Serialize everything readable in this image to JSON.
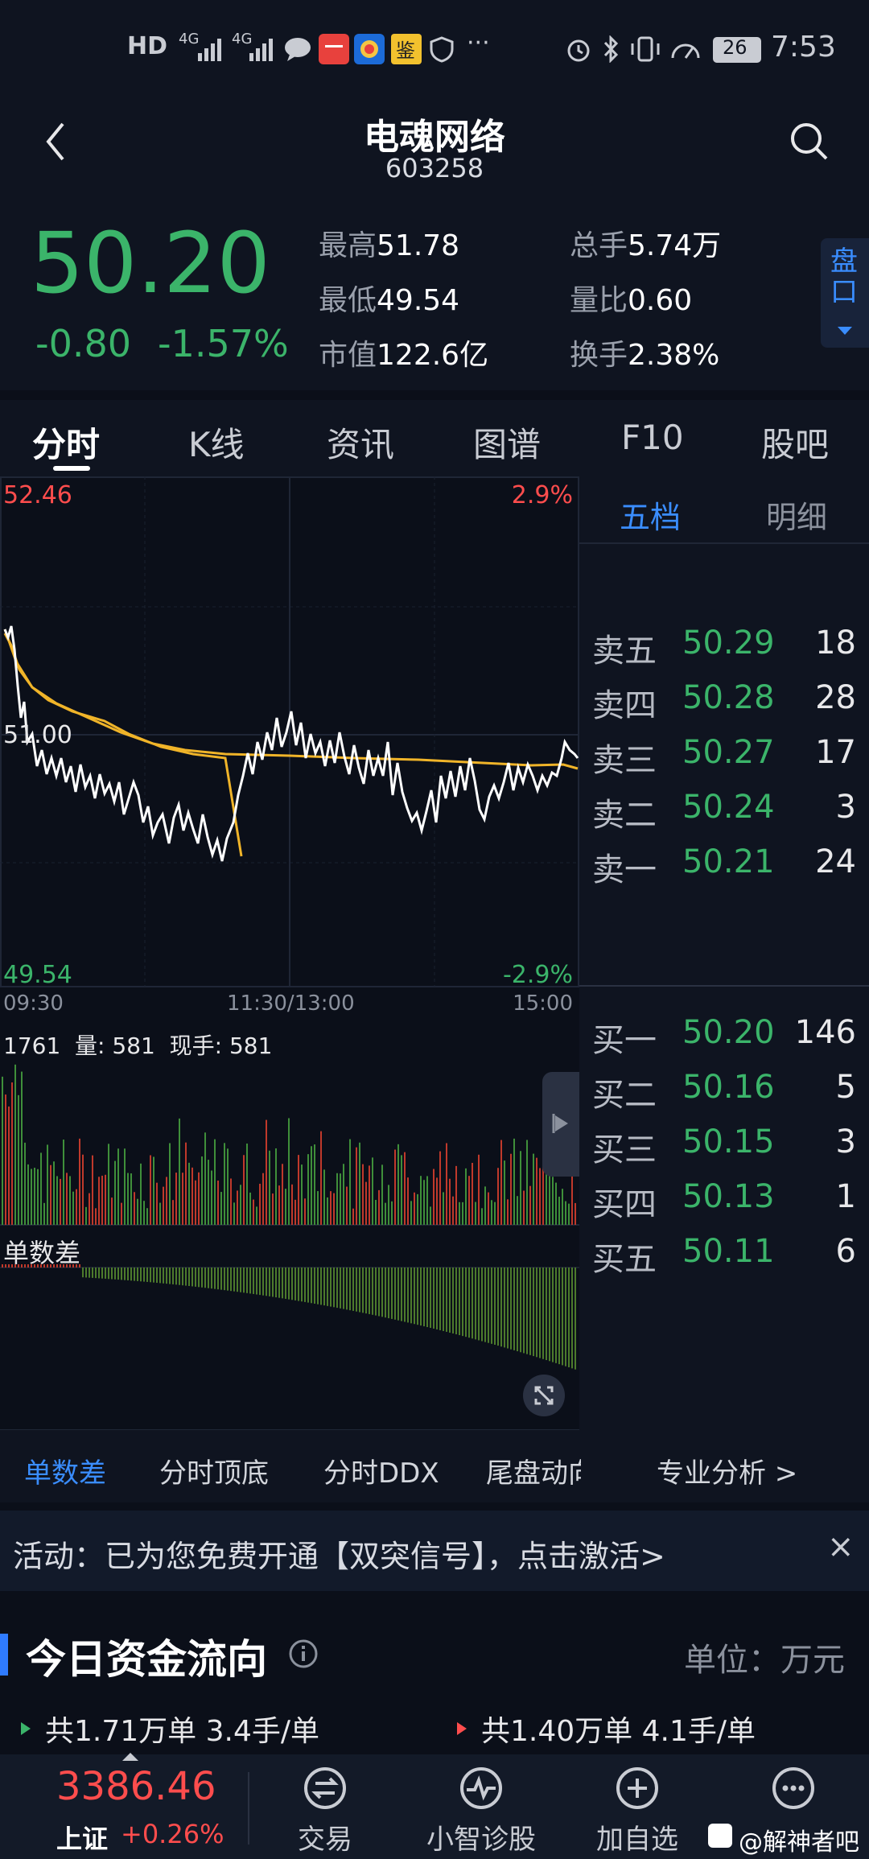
{
  "status_bar": {
    "left_icons": [
      "HD",
      "4G",
      "4G"
    ],
    "app_icons": [
      "message-icon",
      "huawei-app-icon",
      "app-icon",
      "jian-icon",
      "shield-icon"
    ],
    "more": "···",
    "battery": "26",
    "time": "7:53"
  },
  "header": {
    "title": "电魂网络",
    "code": "603258"
  },
  "quote": {
    "price": "50.20",
    "change": "-0.80",
    "change_pct": "-1.57%",
    "stats": [
      {
        "label": "最高",
        "value": "51.78"
      },
      {
        "label": "最低",
        "value": "49.54"
      },
      {
        "label": "市值",
        "value": "122.6亿"
      },
      {
        "label": "总手",
        "value": "5.74万"
      },
      {
        "label": "量比",
        "value": "0.60"
      },
      {
        "label": "换手",
        "value": "2.38%"
      }
    ],
    "pankou": "盘口"
  },
  "tabs": [
    "分时",
    "K线",
    "资讯",
    "图谱",
    "F10",
    "股吧"
  ],
  "chart": {
    "top_price": "52.46",
    "top_pct": "2.9%",
    "mid_price": "51.00",
    "bottom_price": "49.54",
    "bottom_pct": "-2.9%",
    "time_start": "09:30",
    "time_mid": "11:30/13:00",
    "time_end": "15:00",
    "volume_info": "1761  量: 581  现手: 581",
    "diff_label": "单数差"
  },
  "orderbook": {
    "tabs": [
      "五档",
      "明细"
    ],
    "sells": [
      {
        "name": "卖五",
        "price": "50.29",
        "vol": "18"
      },
      {
        "name": "卖四",
        "price": "50.28",
        "vol": "28"
      },
      {
        "name": "卖三",
        "price": "50.27",
        "vol": "17"
      },
      {
        "name": "卖二",
        "price": "50.24",
        "vol": "3"
      },
      {
        "name": "卖一",
        "price": "50.21",
        "vol": "24"
      }
    ],
    "buys": [
      {
        "name": "买一",
        "price": "50.20",
        "vol": "146"
      },
      {
        "name": "买二",
        "price": "50.16",
        "vol": "5"
      },
      {
        "name": "买三",
        "price": "50.15",
        "vol": "3"
      },
      {
        "name": "买四",
        "price": "50.13",
        "vol": "1"
      },
      {
        "name": "买五",
        "price": "50.11",
        "vol": "6"
      }
    ]
  },
  "subtabs": [
    "单数差",
    "分时顶底",
    "分时DDX",
    "尾盘动向",
    "专业分析 >"
  ],
  "activity": {
    "text": "活动：已为您免费开通【双突信号】，点击激活>",
    "close": "×"
  },
  "capital": {
    "title": "今日资金流向",
    "unit": "单位：万元",
    "left": "共1.71万单 3.4手/单",
    "right": "共1.40万单 4.1手/单"
  },
  "bottom_nav": {
    "index_value": "3386.46",
    "index_name": "上证",
    "index_change": "+0.26%",
    "items": [
      "交易",
      "小智诊股",
      "加自选",
      "更多"
    ],
    "watermark": "@解神者吧"
  },
  "colors": {
    "up": "#ff4d4d",
    "down": "#3bb46a",
    "accent": "#2f7bff",
    "avg_line": "#f0b429"
  }
}
